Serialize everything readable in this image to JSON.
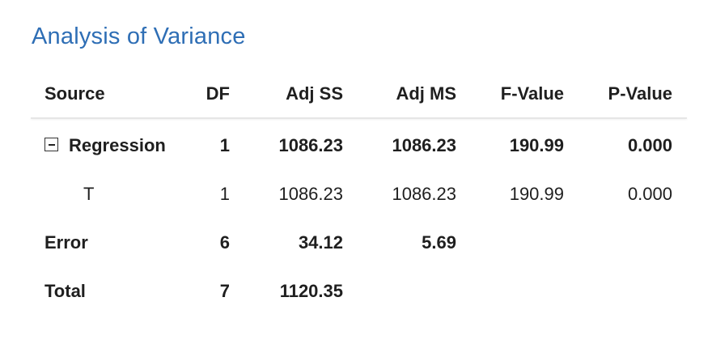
{
  "title": "Analysis of Variance",
  "columns": {
    "source": "Source",
    "df": "DF",
    "adj_ss": "Adj SS",
    "adj_ms": "Adj MS",
    "f_value": "F-Value",
    "p_value": "P-Value"
  },
  "rows": [
    {
      "source": "Regression",
      "df": "1",
      "adj_ss": "1086.23",
      "adj_ms": "1086.23",
      "f_value": "190.99",
      "p_value": "0.000"
    },
    {
      "source": "T",
      "df": "1",
      "adj_ss": "1086.23",
      "adj_ms": "1086.23",
      "f_value": "190.99",
      "p_value": "0.000"
    },
    {
      "source": "Error",
      "df": "6",
      "adj_ss": "34.12",
      "adj_ms": "5.69"
    },
    {
      "source": "Total",
      "df": "7",
      "adj_ss": "1120.35"
    }
  ],
  "icons": {
    "collapse": "minus-box-icon"
  },
  "colors": {
    "title": "#2e6eb5"
  }
}
